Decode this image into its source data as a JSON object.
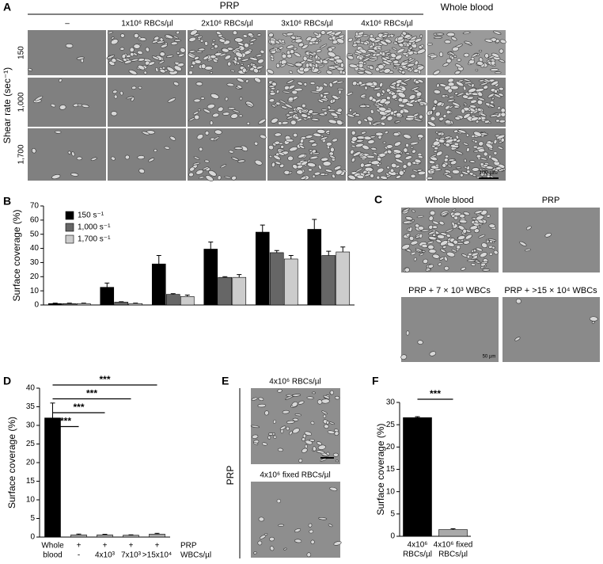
{
  "panel_a": {
    "letter": "A",
    "group_header": "PRP",
    "whole_blood": "Whole blood",
    "columns": [
      "–",
      "1x10⁶ RBCs/µl",
      "2x10⁶ RBCs/µl",
      "3x10⁶ RBCs/µl",
      "4x10⁶ RBCs/µl"
    ],
    "rows": [
      "150",
      "1,000",
      "1,700"
    ],
    "y_label": "Shear rate (sec⁻¹)",
    "scale_bar": "100 µm"
  },
  "panel_c": {
    "letter": "C",
    "images": [
      "Whole blood",
      "PRP",
      "PRP + 7 × 10³ WBCs",
      "PRP + >15 × 10⁴ WBCs"
    ],
    "scale_bar": "50 µm"
  },
  "panel_e": {
    "letter": "E",
    "images": [
      "4x10⁶ RBCs/µl",
      "4x10⁶ fixed RBCs/µl"
    ],
    "group_label": "PRP"
  },
  "chart_data": [
    {
      "type": "bar",
      "panel": "B",
      "y_label": "Surface coverage (%)",
      "categories": [
        null,
        null,
        null,
        null,
        null,
        null
      ],
      "series": [
        {
          "name": "150 s⁻¹",
          "color": "#000000",
          "values": [
            1,
            12.5,
            29,
            39.5,
            51.5,
            53.5
          ],
          "errors": [
            0.3,
            3,
            6,
            5,
            5,
            7
          ]
        },
        {
          "name": "1,000 s⁻¹",
          "color": "#666666",
          "values": [
            1,
            2,
            7.5,
            19.5,
            37,
            35
          ],
          "errors": [
            0.3,
            0.3,
            0.5,
            0.5,
            1.5,
            3
          ]
        },
        {
          "name": "1,700 s⁻¹",
          "color": "#cccccc",
          "values": [
            1,
            1,
            6,
            19.5,
            32.5,
            37.5
          ],
          "errors": [
            0.3,
            0.3,
            1,
            2,
            2.5,
            3.5
          ]
        }
      ],
      "ylim": [
        0,
        70
      ],
      "yticks": [
        0,
        10,
        20,
        30,
        40,
        50,
        60,
        70
      ]
    },
    {
      "type": "bar",
      "panel": "D",
      "y_label": "Surface coverage (%)",
      "x_label_rows": [
        [
          "Whole",
          "+",
          "+",
          "+",
          "+"
        ],
        [
          "blood",
          "-",
          "4x10³",
          "7x10³",
          ">15x10⁴"
        ]
      ],
      "row_names": [
        "PRP",
        "WBCs/µl"
      ],
      "values": [
        32,
        0.6,
        0.6,
        0.5,
        0.8
      ],
      "errors": [
        4,
        0.2,
        0.15,
        0.1,
        0.2
      ],
      "colors": [
        "#000000",
        "#aaaaaa",
        "#aaaaaa",
        "#aaaaaa",
        "#aaaaaa"
      ],
      "significance": [
        {
          "from": 0,
          "to": 4,
          "label": "***"
        },
        {
          "from": 0,
          "to": 3,
          "label": "***"
        },
        {
          "from": 0,
          "to": 2,
          "label": "***"
        },
        {
          "from": 0,
          "to": 1,
          "label": "***"
        }
      ],
      "ylim": [
        0,
        40
      ],
      "yticks": [
        0,
        5,
        10,
        15,
        20,
        25,
        30,
        35,
        40
      ]
    },
    {
      "type": "bar",
      "panel": "F",
      "y_label": "Surface coverage (%)",
      "x_label_rows": [
        [
          "4x10⁶",
          "4x10⁶ fixed"
        ],
        [
          "RBCs/µl",
          "RBCs/µl"
        ]
      ],
      "values": [
        26.6,
        1.5
      ],
      "errors": [
        0.2,
        0.2
      ],
      "colors": [
        "#000000",
        "#aaaaaa"
      ],
      "significance": [
        {
          "from": 0,
          "to": 1,
          "label": "***"
        }
      ],
      "ylim": [
        0,
        30
      ],
      "yticks": [
        0,
        5,
        10,
        15,
        20,
        25,
        30
      ]
    }
  ]
}
